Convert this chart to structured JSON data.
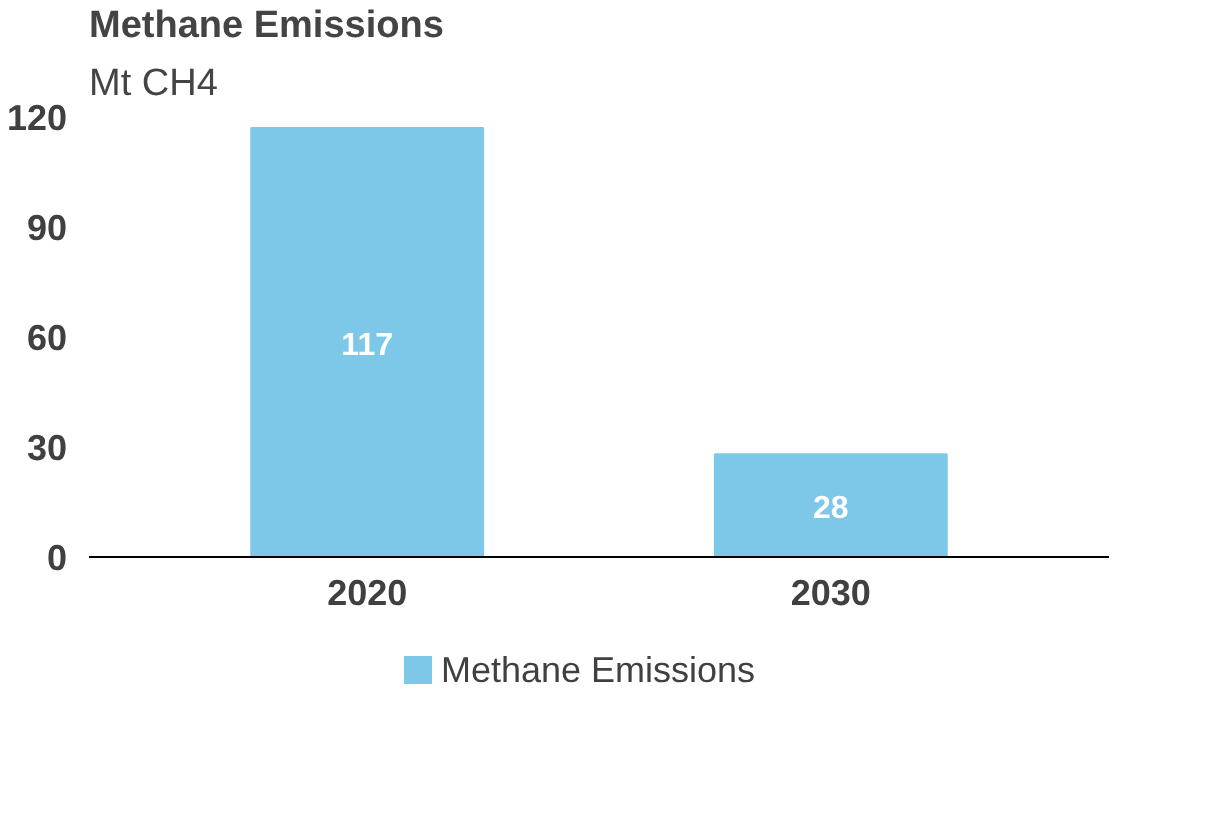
{
  "chart_data": {
    "type": "bar",
    "title": "Methane Emissions",
    "subtitle": "Mt CH4",
    "categories": [
      "2020",
      "2030"
    ],
    "series": [
      {
        "name": "Methane Emissions",
        "color": "#7dc8e8",
        "values": [
          117,
          28
        ]
      }
    ],
    "ylim": [
      0,
      120
    ],
    "yticks": [
      0,
      30,
      60,
      90,
      120
    ],
    "grid": false,
    "data_labels": true,
    "legend": "bottom"
  }
}
